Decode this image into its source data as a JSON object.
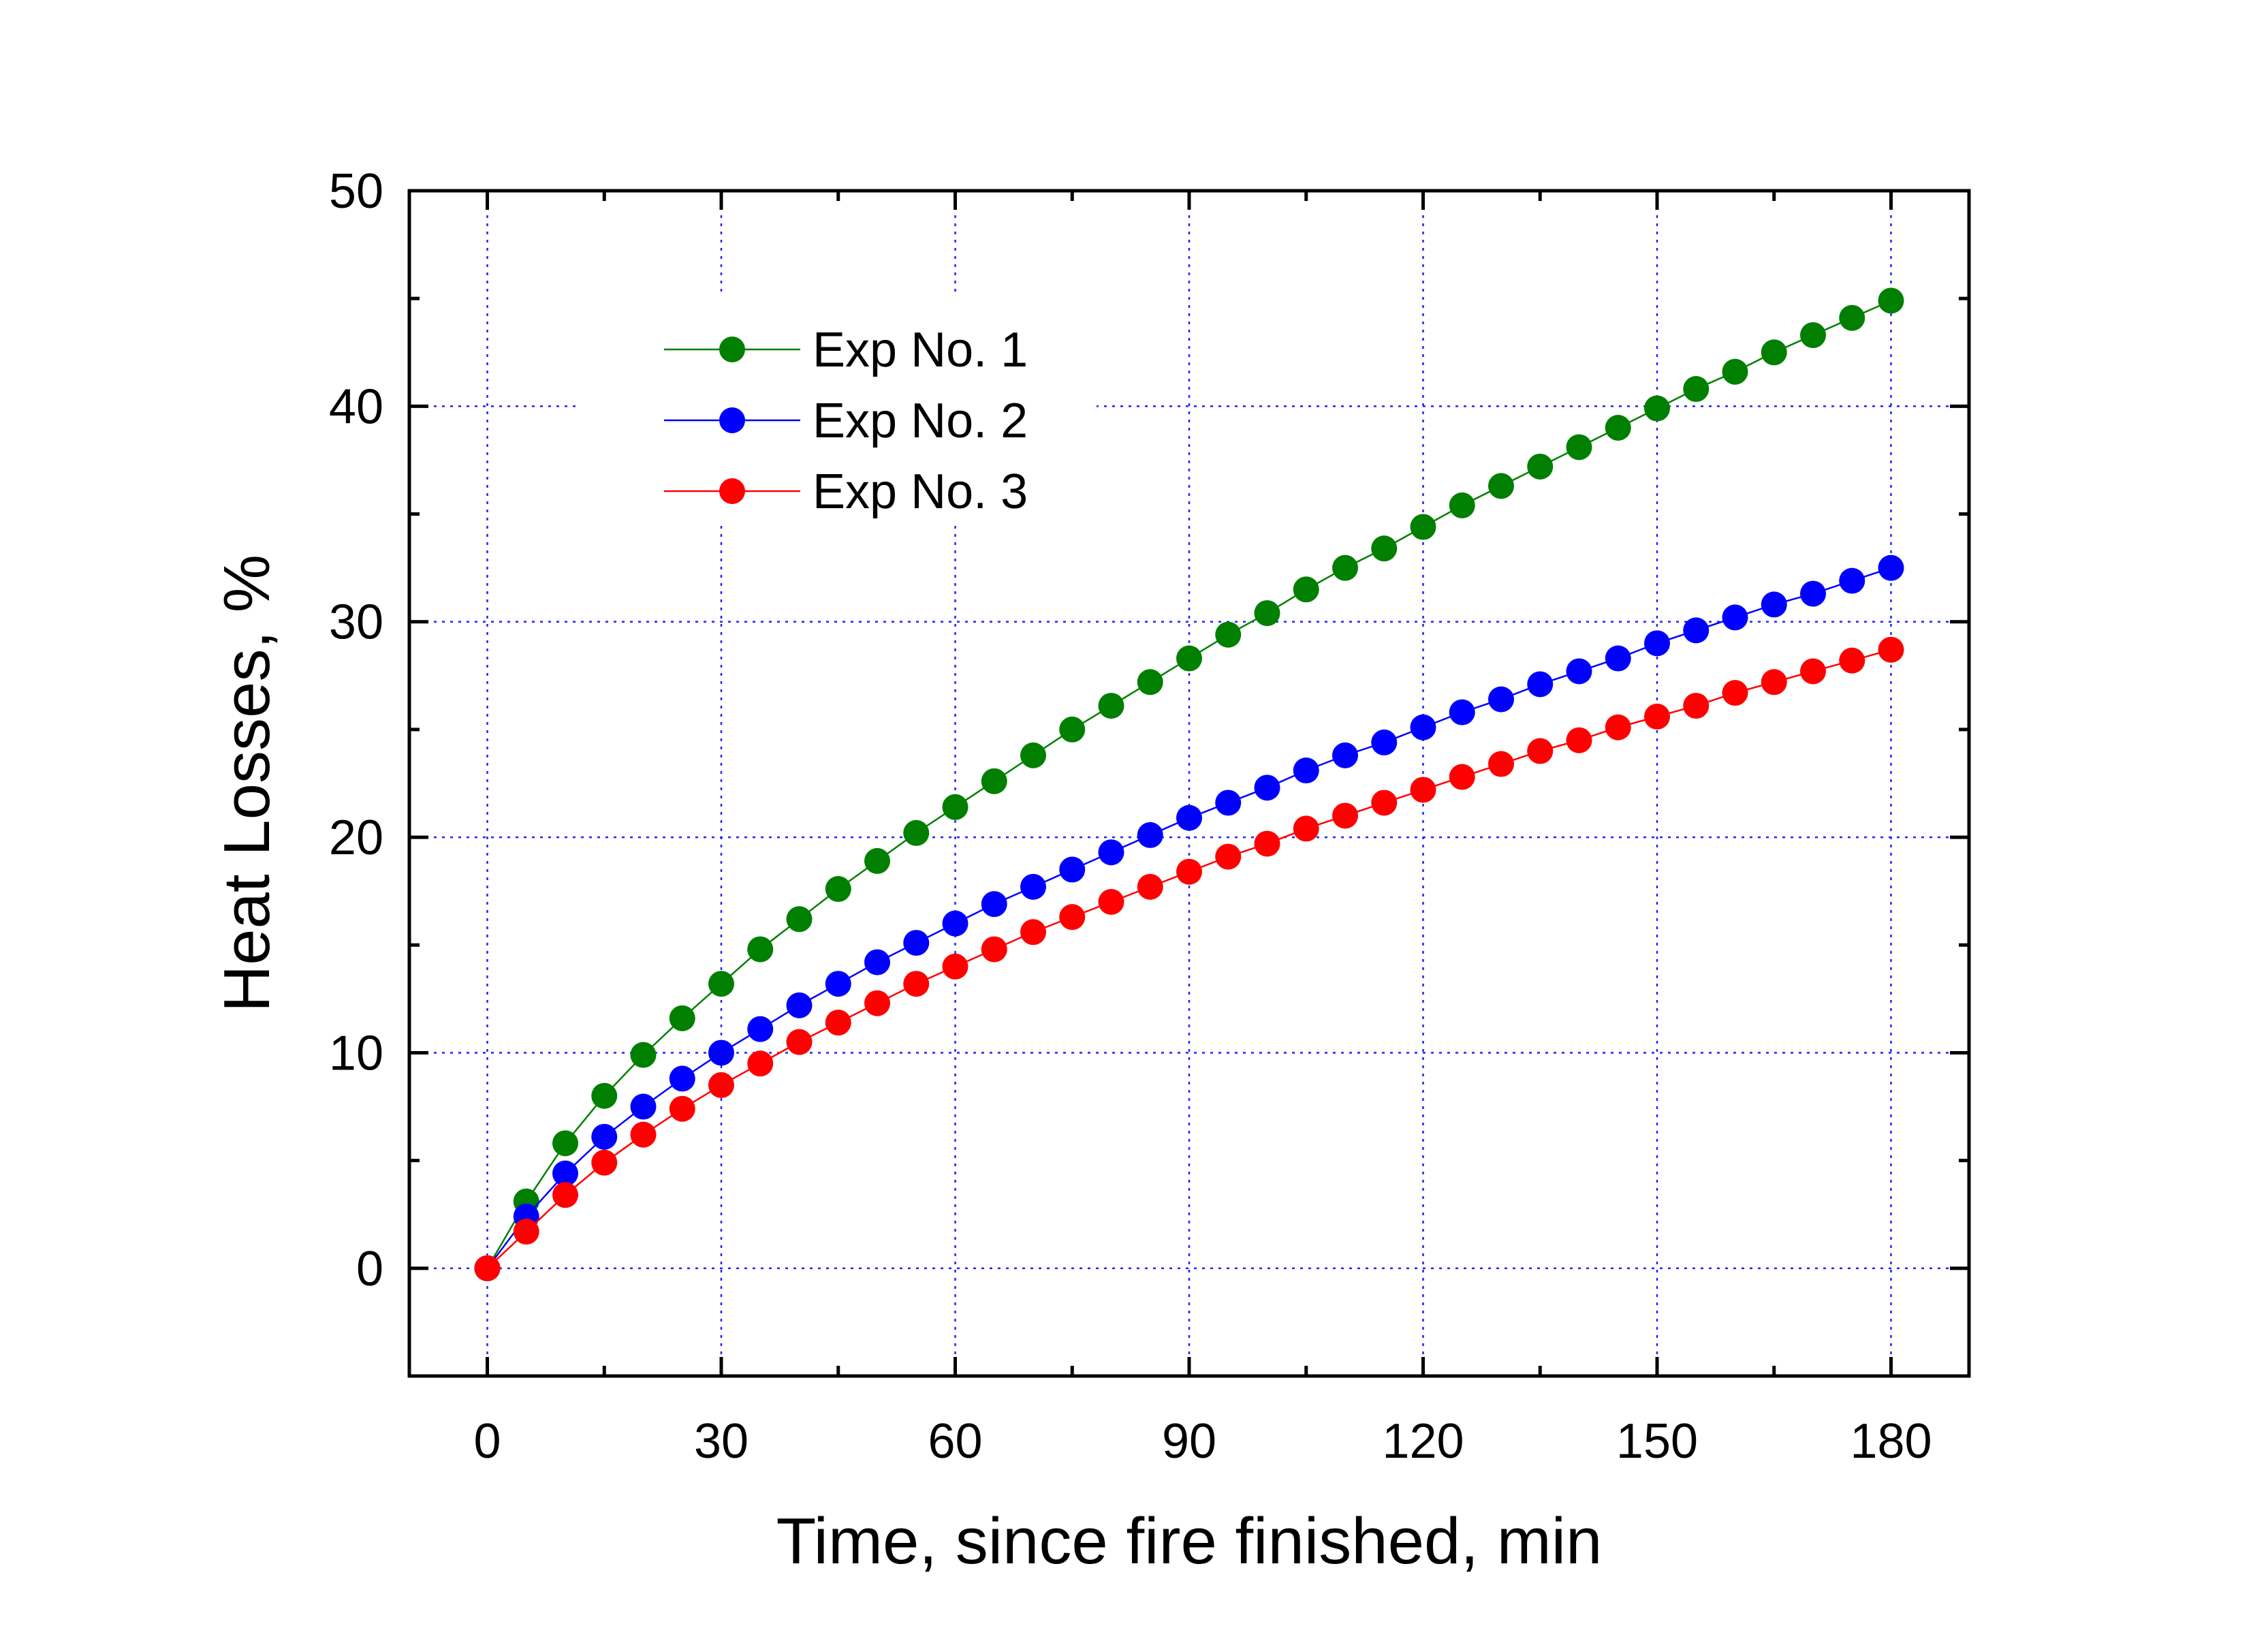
{
  "chart_data": {
    "type": "line",
    "xlabel": "Time, since fire finished, min",
    "ylabel": "Heat Losses, %",
    "xlim": [
      -10,
      190
    ],
    "ylim": [
      -5,
      50
    ],
    "xticks": [
      0,
      30,
      60,
      90,
      120,
      150,
      180
    ],
    "yticks": [
      0,
      10,
      20,
      30,
      40,
      50
    ],
    "grid": true,
    "legend_position": "top-left",
    "x": [
      0,
      5,
      10,
      15,
      20,
      25,
      30,
      35,
      40,
      45,
      50,
      55,
      60,
      65,
      70,
      75,
      80,
      85,
      90,
      95,
      100,
      105,
      110,
      115,
      120,
      125,
      130,
      135,
      140,
      145,
      150,
      155,
      160,
      165,
      170,
      175,
      180
    ],
    "series": [
      {
        "name": "Exp No. 1",
        "color": "#007f00",
        "values": [
          0,
          3.1,
          5.8,
          8.0,
          9.9,
          11.6,
          13.2,
          14.8,
          16.2,
          17.6,
          18.9,
          20.2,
          21.4,
          22.6,
          23.8,
          25.0,
          26.1,
          27.2,
          28.3,
          29.4,
          30.4,
          31.5,
          32.5,
          33.4,
          34.4,
          35.4,
          36.3,
          37.2,
          38.1,
          39.0,
          39.9,
          40.8,
          41.6,
          42.5,
          43.3,
          44.1,
          44.9
        ]
      },
      {
        "name": "Exp No. 2",
        "color": "#0000ff",
        "values": [
          0,
          2.4,
          4.4,
          6.1,
          7.5,
          8.8,
          10.0,
          11.1,
          12.2,
          13.2,
          14.2,
          15.1,
          16.0,
          16.9,
          17.7,
          18.5,
          19.3,
          20.1,
          20.9,
          21.6,
          22.3,
          23.1,
          23.8,
          24.4,
          25.1,
          25.8,
          26.4,
          27.1,
          27.7,
          28.3,
          29.0,
          29.6,
          30.2,
          30.8,
          31.3,
          31.9,
          32.5
        ]
      },
      {
        "name": "Exp No. 3",
        "color": "#ff0000",
        "values": [
          0,
          1.7,
          3.4,
          4.9,
          6.2,
          7.4,
          8.5,
          9.5,
          10.5,
          11.4,
          12.3,
          13.2,
          14.0,
          14.8,
          15.6,
          16.3,
          17.0,
          17.7,
          18.4,
          19.1,
          19.7,
          20.4,
          21.0,
          21.6,
          22.2,
          22.8,
          23.4,
          24.0,
          24.5,
          25.1,
          25.6,
          26.1,
          26.7,
          27.2,
          27.7,
          28.2,
          28.7
        ]
      }
    ]
  }
}
